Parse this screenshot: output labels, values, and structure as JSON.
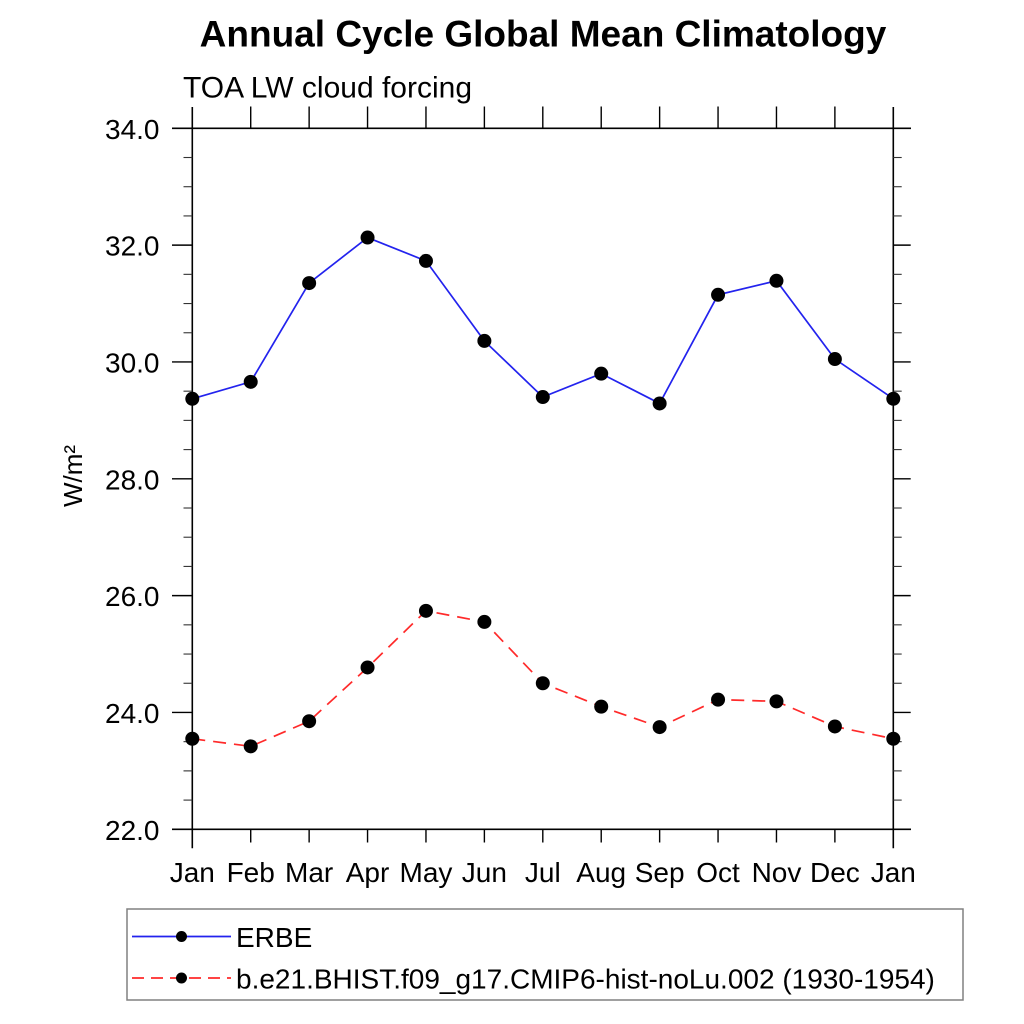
{
  "chart_data": {
    "type": "line",
    "title": "Annual Cycle Global Mean Climatology",
    "subtitle": "TOA LW cloud forcing",
    "ylabel": "W/m²",
    "categories": [
      "Jan",
      "Feb",
      "Mar",
      "Apr",
      "May",
      "Jun",
      "Jul",
      "Aug",
      "Sep",
      "Oct",
      "Nov",
      "Dec",
      "Jan"
    ],
    "ylim": [
      22.0,
      34.0
    ],
    "ytick_major": 2.0,
    "ytick_minor": 0.5,
    "ytick_labels": [
      "22.0",
      "24.0",
      "26.0",
      "28.0",
      "30.0",
      "32.0",
      "34.0"
    ],
    "grid": "off",
    "legend_position": "below-plot-left",
    "series": [
      {
        "name": "ERBE",
        "color": "#2323ee",
        "line_style": "solid",
        "marker": "filled-circle",
        "marker_color": "#000000",
        "values": [
          29.37,
          29.66,
          31.35,
          32.13,
          31.73,
          30.36,
          29.4,
          29.8,
          29.29,
          31.15,
          31.39,
          30.05,
          29.37
        ]
      },
      {
        "name": "b.e21.BHIST.f09_g17.CMIP6-hist-noLu.002 (1930-1954)",
        "color": "#ff2a2a",
        "line_style": "dashed",
        "marker": "filled-circle",
        "marker_color": "#000000",
        "values": [
          23.55,
          23.42,
          23.85,
          24.77,
          25.74,
          25.55,
          24.5,
          24.1,
          23.75,
          24.22,
          24.19,
          23.76,
          23.55
        ]
      }
    ]
  },
  "colors": {
    "background": "#ffffff",
    "axis": "#000000",
    "tick_minor": "#333333",
    "text": "#000000",
    "legend_border": "#808080"
  }
}
